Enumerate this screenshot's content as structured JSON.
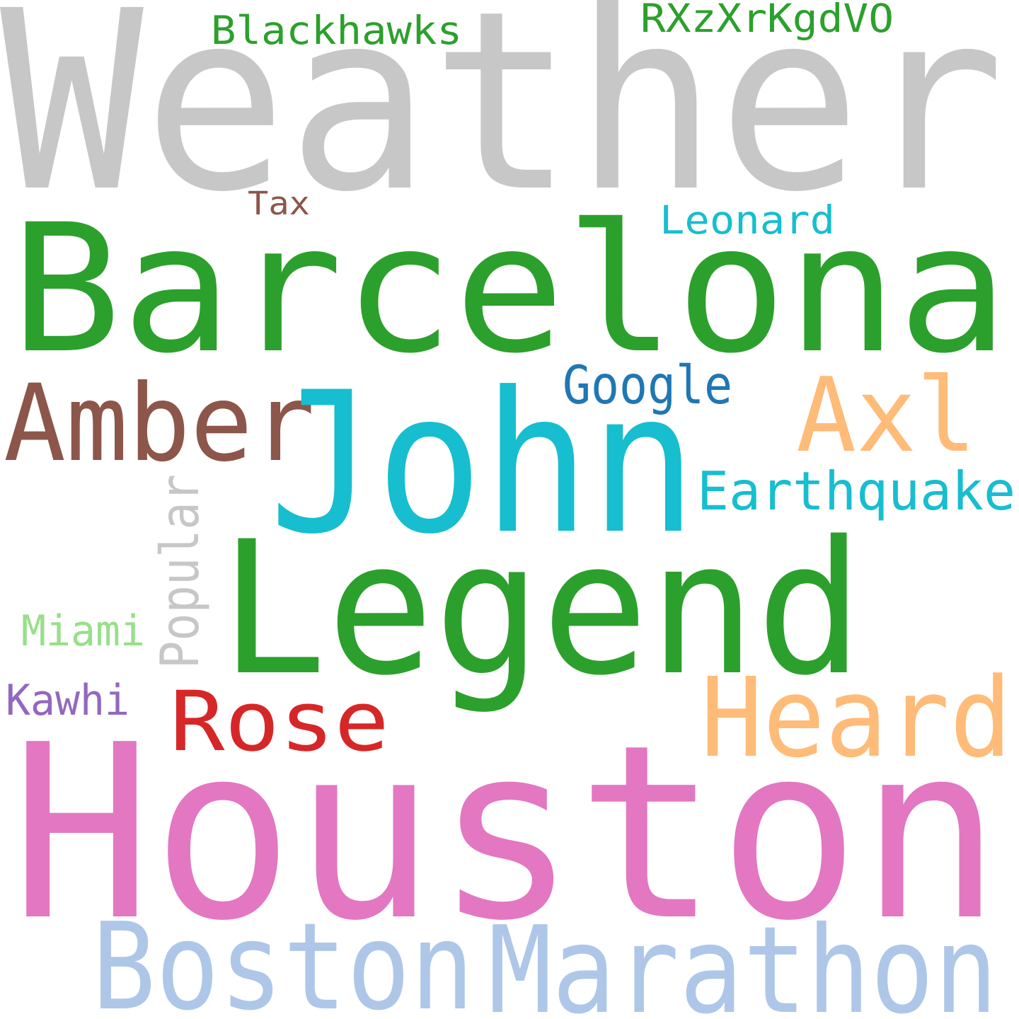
{
  "words": [
    {
      "text": "Weather",
      "color": "#c7c7c7"
    },
    {
      "text": "Blackhawks",
      "color": "#2ca02c"
    },
    {
      "text": "RXzXrKgdVO",
      "color": "#2ca02c"
    },
    {
      "text": "Tax",
      "color": "#8c564b"
    },
    {
      "text": "Leonard",
      "color": "#17becf"
    },
    {
      "text": "Barcelona",
      "color": "#2ca02c"
    },
    {
      "text": "Amber",
      "color": "#8c564b"
    },
    {
      "text": "John",
      "color": "#17becf"
    },
    {
      "text": "Google",
      "color": "#1f77b4"
    },
    {
      "text": "Axl",
      "color": "#ffbb78"
    },
    {
      "text": "Earthquake",
      "color": "#17becf"
    },
    {
      "text": "Popular",
      "color": "#c7c7c7"
    },
    {
      "text": "Legend",
      "color": "#2ca02c"
    },
    {
      "text": "Miami",
      "color": "#98df8a"
    },
    {
      "text": "Kawhi",
      "color": "#9467bd"
    },
    {
      "text": "Rose",
      "color": "#d62728"
    },
    {
      "text": "Heard",
      "color": "#ffbb78"
    },
    {
      "text": "Houston",
      "color": "#e377c2"
    },
    {
      "text": "Boston",
      "color": "#aec7e8"
    },
    {
      "text": "Marathon",
      "color": "#aec7e8"
    }
  ]
}
